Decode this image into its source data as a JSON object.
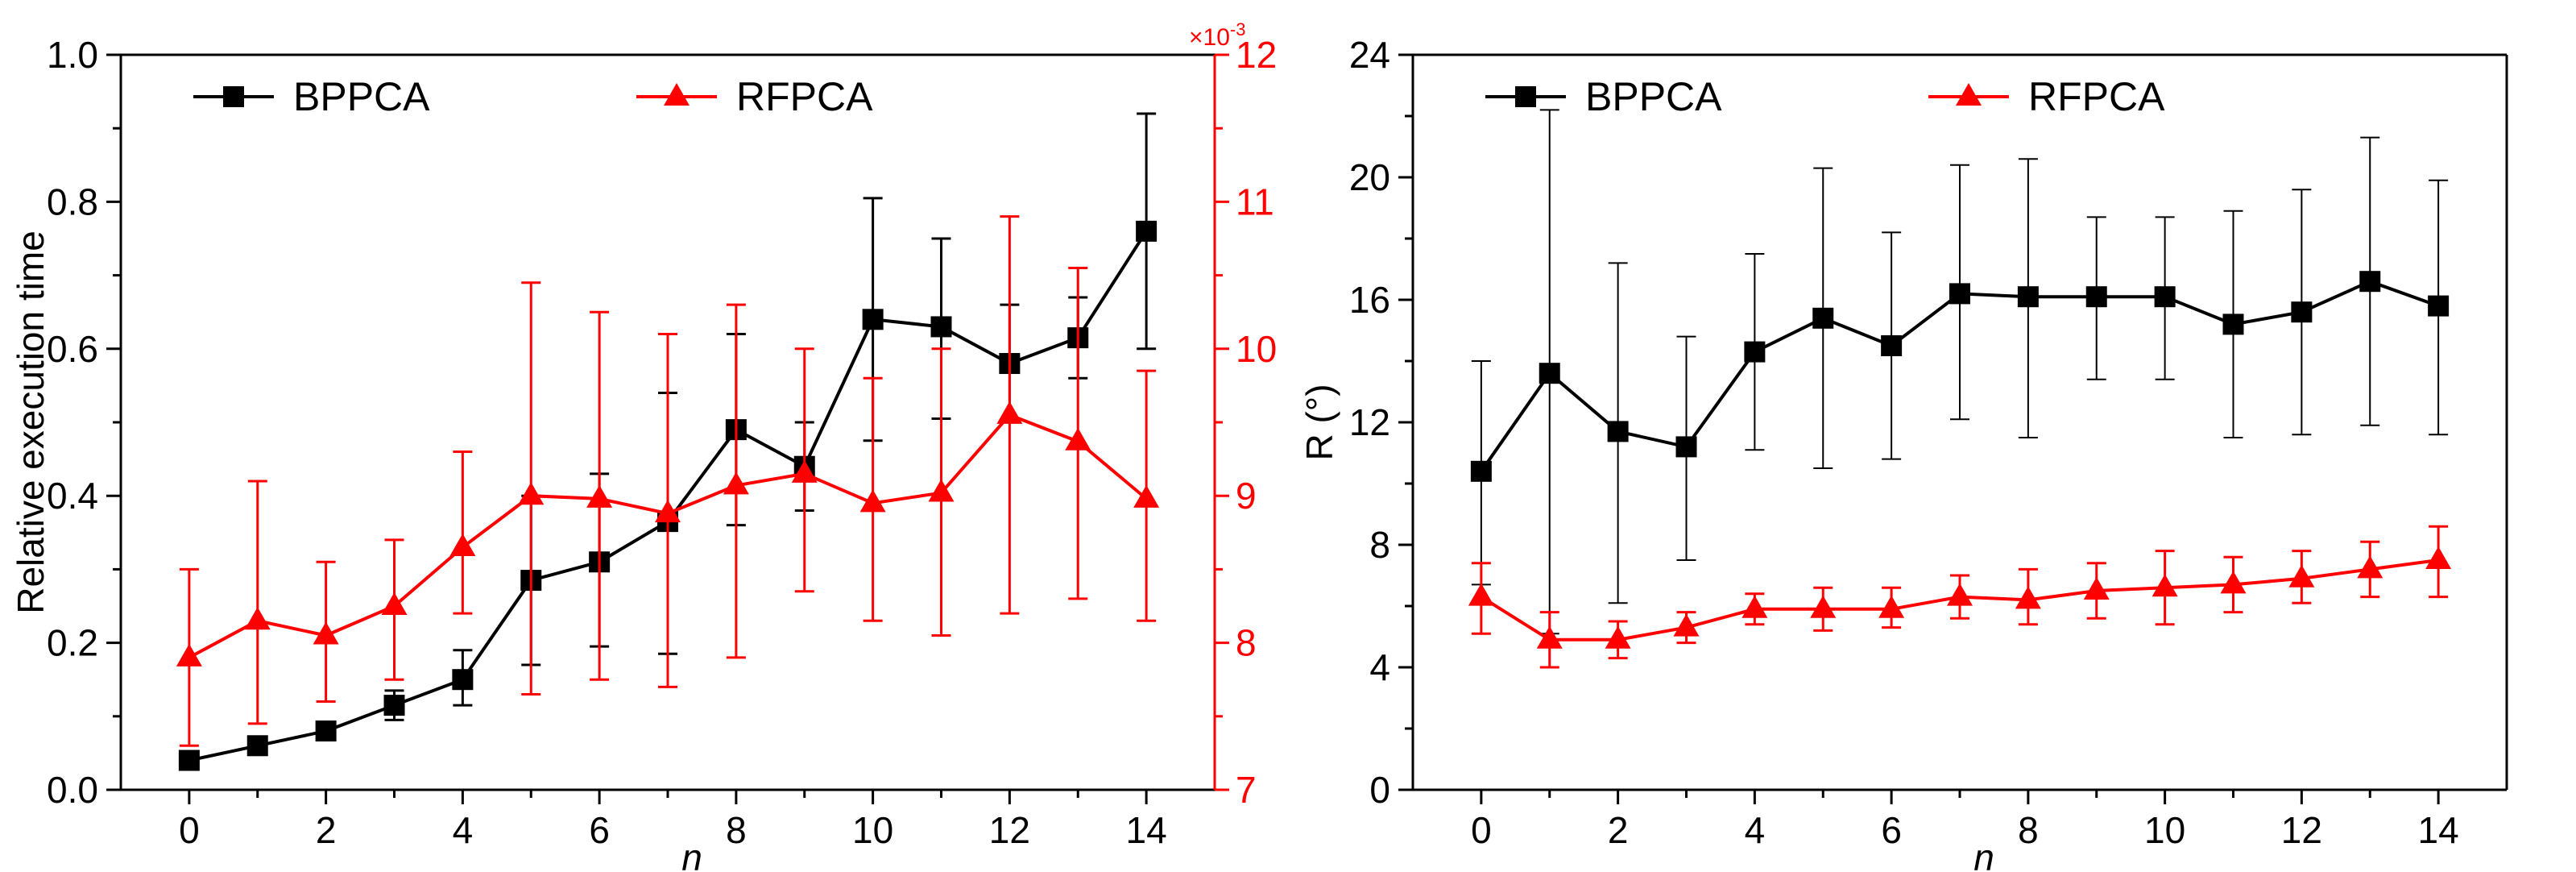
{
  "colors": {
    "black": "#000000",
    "red": "#ff0000"
  },
  "chart_data": [
    {
      "type": "line",
      "title": "",
      "xlabel": "n",
      "ylabel": "Relative execution time",
      "y2label": "",
      "y2_multiplier": "×10",
      "y2_exponent": "-3",
      "x": [
        0,
        1,
        2,
        3,
        4,
        5,
        6,
        7,
        8,
        9,
        10,
        11,
        12,
        13,
        14
      ],
      "xlim": [
        -1,
        15
      ],
      "xticks": [
        "0",
        "2",
        "4",
        "6",
        "8",
        "10",
        "12",
        "14"
      ],
      "ylim": [
        0,
        1.0
      ],
      "yticks": [
        "0.0",
        "0.2",
        "0.4",
        "0.6",
        "0.8",
        "1.0"
      ],
      "y2lim": [
        7,
        12
      ],
      "y2ticks": [
        "7",
        "8",
        "9",
        "10",
        "11",
        "12"
      ],
      "series": [
        {
          "name": "BPPCA",
          "axis": "left",
          "color": "#000000",
          "marker": "square",
          "values": [
            0.04,
            0.06,
            0.08,
            0.115,
            0.15,
            0.285,
            0.31,
            0.365,
            0.49,
            0.44,
            0.64,
            0.63,
            0.58,
            0.615,
            0.76
          ],
          "err_low": [
            0.035,
            0.05,
            0.07,
            0.095,
            0.115,
            0.17,
            0.195,
            0.185,
            0.36,
            0.38,
            0.475,
            0.505,
            0.5,
            0.56,
            0.6
          ],
          "err_high": [
            0.05,
            0.07,
            0.09,
            0.135,
            0.19,
            0.4,
            0.43,
            0.54,
            0.62,
            0.5,
            0.805,
            0.75,
            0.66,
            0.67,
            0.92
          ]
        },
        {
          "name": "RFPCA",
          "axis": "right",
          "color": "#ff0000",
          "marker": "triangle",
          "values": [
            7.9,
            8.15,
            8.05,
            8.25,
            8.65,
            9.0,
            8.98,
            8.88,
            9.07,
            9.15,
            8.95,
            9.02,
            9.55,
            9.37,
            8.98
          ],
          "err_low": [
            7.3,
            7.45,
            7.6,
            7.75,
            8.2,
            7.65,
            7.75,
            7.7,
            7.9,
            8.35,
            8.15,
            8.05,
            8.2,
            8.3,
            8.15
          ],
          "err_high": [
            8.5,
            9.1,
            8.55,
            8.7,
            9.3,
            10.45,
            10.25,
            10.1,
            10.3,
            10.0,
            9.8,
            10.0,
            10.9,
            10.55,
            9.85
          ]
        }
      ],
      "legend": "top"
    },
    {
      "type": "line",
      "title": "",
      "xlabel": "n",
      "ylabel": "R (°)",
      "x": [
        0,
        1,
        2,
        3,
        4,
        5,
        6,
        7,
        8,
        9,
        10,
        11,
        12,
        13,
        14
      ],
      "xlim": [
        -1,
        15
      ],
      "xticks": [
        "0",
        "2",
        "4",
        "6",
        "8",
        "10",
        "12",
        "14"
      ],
      "ylim": [
        0,
        24
      ],
      "yticks": [
        "0",
        "4",
        "8",
        "12",
        "16",
        "20",
        "24"
      ],
      "series": [
        {
          "name": "BPPCA",
          "color": "#000000",
          "marker": "square",
          "values": [
            10.4,
            13.6,
            11.7,
            11.2,
            14.3,
            15.4,
            14.5,
            16.2,
            16.1,
            16.1,
            16.1,
            15.2,
            15.6,
            16.6,
            15.8
          ],
          "err_low": [
            6.7,
            5.1,
            6.1,
            7.5,
            11.1,
            10.5,
            10.8,
            12.1,
            11.5,
            13.4,
            13.4,
            11.5,
            11.6,
            11.9,
            11.6
          ],
          "err_high": [
            14.0,
            22.2,
            17.2,
            14.8,
            17.5,
            20.3,
            18.2,
            20.4,
            20.6,
            18.7,
            18.7,
            18.9,
            19.6,
            21.3,
            19.9
          ]
        },
        {
          "name": "RFPCA",
          "color": "#ff0000",
          "marker": "triangle",
          "values": [
            6.3,
            4.9,
            4.9,
            5.3,
            5.9,
            5.9,
            5.9,
            6.3,
            6.2,
            6.5,
            6.6,
            6.7,
            6.9,
            7.2,
            7.5
          ],
          "err_low": [
            5.1,
            4.0,
            4.3,
            4.8,
            5.4,
            5.2,
            5.3,
            5.6,
            5.4,
            5.6,
            5.4,
            5.8,
            6.1,
            6.3,
            6.3
          ],
          "err_high": [
            7.4,
            5.8,
            5.5,
            5.8,
            6.4,
            6.6,
            6.6,
            7.0,
            7.2,
            7.4,
            7.8,
            7.6,
            7.8,
            8.1,
            8.6
          ]
        }
      ],
      "legend": "top"
    }
  ]
}
